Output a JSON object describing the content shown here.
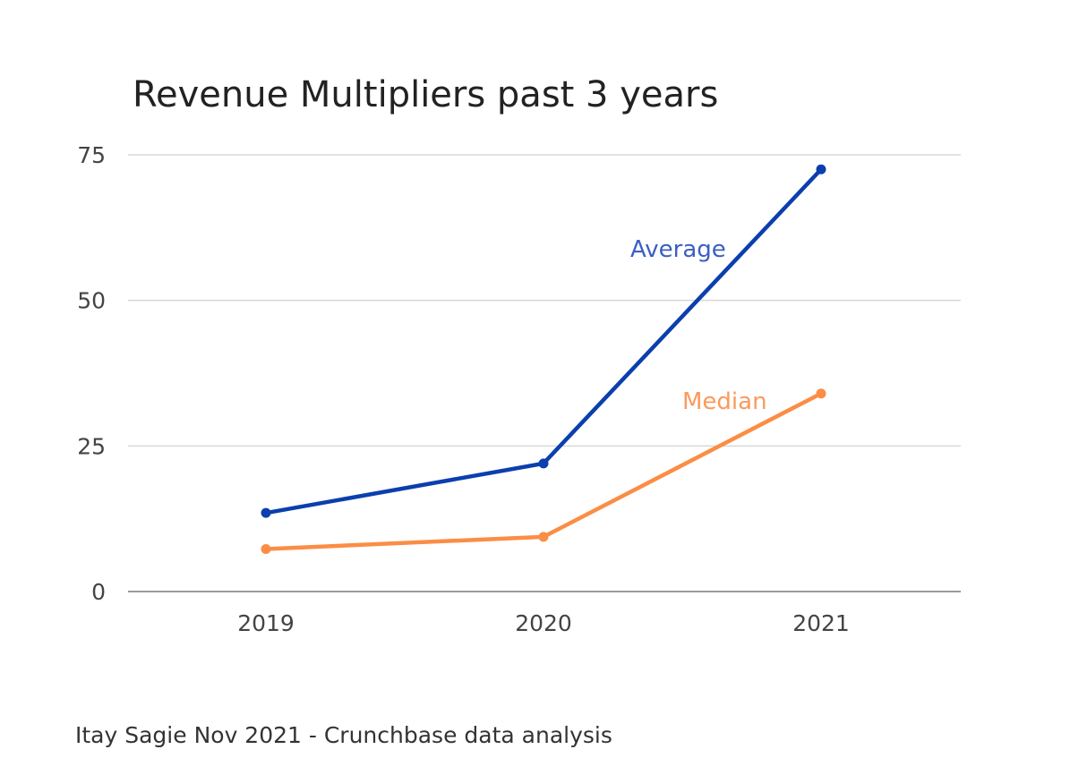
{
  "chart_data": {
    "type": "line",
    "title": "Revenue Multipliers past 3 years",
    "xlabel": "",
    "ylabel": "",
    "x": [
      "2019",
      "2020",
      "2021"
    ],
    "ylim": [
      0,
      75
    ],
    "yticks": [
      "0",
      "25",
      "50",
      "75"
    ],
    "grid": true,
    "legend": "inline labels",
    "series": [
      {
        "name": "Average",
        "values": [
          13.5,
          22,
          72.5
        ],
        "color": "#0b3fae"
      },
      {
        "name": "Median",
        "values": [
          7.3,
          9.4,
          34
        ],
        "color": "#fb8d45"
      }
    ]
  },
  "footnote": "Itay Sagie Nov 2021 - Crunchbase data analysis"
}
